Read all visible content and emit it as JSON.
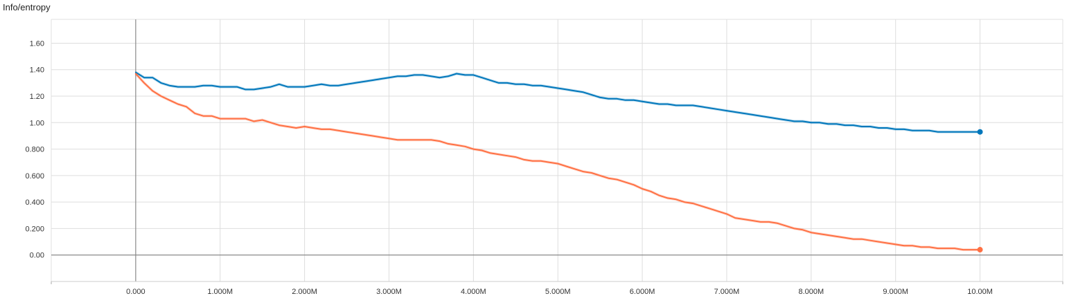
{
  "chart_data": {
    "type": "line",
    "title": "Info/entropy",
    "xlabel": "",
    "ylabel": "",
    "xlim": [
      -1000000,
      10980000
    ],
    "ylim": [
      -0.2,
      1.78
    ],
    "x_ticks": [
      0,
      1000000,
      2000000,
      3000000,
      4000000,
      5000000,
      6000000,
      7000000,
      8000000,
      9000000,
      10000000
    ],
    "x_tick_labels": [
      "0.000",
      "1.000M",
      "2.000M",
      "3.000M",
      "4.000M",
      "5.000M",
      "6.000M",
      "7.000M",
      "8.000M",
      "9.000M",
      "10.00M"
    ],
    "y_ticks": [
      0,
      0.2,
      0.4,
      0.6,
      0.8,
      1.0,
      1.2,
      1.4,
      1.6
    ],
    "y_tick_labels": [
      "0.00",
      "0.200",
      "0.400",
      "0.600",
      "0.800",
      "1.00",
      "1.20",
      "1.40",
      "1.60"
    ],
    "grid": true,
    "series": [
      {
        "color": "#0077bb",
        "x": [
          0,
          100000,
          200000,
          300000,
          400000,
          500000,
          600000,
          700000,
          800000,
          900000,
          1000000,
          1100000,
          1200000,
          1300000,
          1400000,
          1500000,
          1600000,
          1700000,
          1800000,
          1900000,
          2000000,
          2100000,
          2200000,
          2300000,
          2400000,
          2500000,
          2600000,
          2700000,
          2800000,
          2900000,
          3000000,
          3100000,
          3200000,
          3300000,
          3400000,
          3500000,
          3600000,
          3700000,
          3800000,
          3900000,
          4000000,
          4100000,
          4200000,
          4300000,
          4400000,
          4500000,
          4600000,
          4700000,
          4800000,
          4900000,
          5000000,
          5100000,
          5200000,
          5300000,
          5400000,
          5500000,
          5600000,
          5700000,
          5800000,
          5900000,
          6000000,
          6100000,
          6200000,
          6300000,
          6400000,
          6500000,
          6600000,
          6700000,
          6800000,
          6900000,
          7000000,
          7100000,
          7200000,
          7300000,
          7400000,
          7500000,
          7600000,
          7700000,
          7800000,
          7900000,
          8000000,
          8100000,
          8200000,
          8300000,
          8400000,
          8500000,
          8600000,
          8700000,
          8800000,
          8900000,
          9000000,
          9100000,
          9200000,
          9300000,
          9400000,
          9500000,
          9600000,
          9700000,
          9800000,
          9900000,
          10000000
        ],
        "y": [
          1.38,
          1.34,
          1.34,
          1.3,
          1.28,
          1.27,
          1.27,
          1.27,
          1.28,
          1.28,
          1.27,
          1.27,
          1.27,
          1.25,
          1.25,
          1.26,
          1.27,
          1.29,
          1.27,
          1.27,
          1.27,
          1.28,
          1.29,
          1.28,
          1.28,
          1.29,
          1.3,
          1.31,
          1.32,
          1.33,
          1.34,
          1.35,
          1.35,
          1.36,
          1.36,
          1.35,
          1.34,
          1.35,
          1.37,
          1.36,
          1.36,
          1.34,
          1.32,
          1.3,
          1.3,
          1.29,
          1.29,
          1.28,
          1.28,
          1.27,
          1.26,
          1.25,
          1.24,
          1.23,
          1.21,
          1.19,
          1.18,
          1.18,
          1.17,
          1.17,
          1.16,
          1.15,
          1.14,
          1.14,
          1.13,
          1.13,
          1.13,
          1.12,
          1.11,
          1.1,
          1.09,
          1.08,
          1.07,
          1.06,
          1.05,
          1.04,
          1.03,
          1.02,
          1.01,
          1.01,
          1.0,
          1.0,
          0.99,
          0.99,
          0.98,
          0.98,
          0.97,
          0.97,
          0.96,
          0.96,
          0.95,
          0.95,
          0.94,
          0.94,
          0.94,
          0.93,
          0.93,
          0.93,
          0.93,
          0.93,
          0.93
        ]
      },
      {
        "color": "#ff7043",
        "x": [
          0,
          100000,
          200000,
          300000,
          400000,
          500000,
          600000,
          700000,
          800000,
          900000,
          1000000,
          1100000,
          1200000,
          1300000,
          1400000,
          1500000,
          1600000,
          1700000,
          1800000,
          1900000,
          2000000,
          2100000,
          2200000,
          2300000,
          2400000,
          2500000,
          2600000,
          2700000,
          2800000,
          2900000,
          3000000,
          3100000,
          3200000,
          3300000,
          3400000,
          3500000,
          3600000,
          3700000,
          3800000,
          3900000,
          4000000,
          4100000,
          4200000,
          4300000,
          4400000,
          4500000,
          4600000,
          4700000,
          4800000,
          4900000,
          5000000,
          5100000,
          5200000,
          5300000,
          5400000,
          5500000,
          5600000,
          5700000,
          5800000,
          5900000,
          6000000,
          6100000,
          6200000,
          6300000,
          6400000,
          6500000,
          6600000,
          6700000,
          6800000,
          6900000,
          7000000,
          7100000,
          7200000,
          7300000,
          7400000,
          7500000,
          7600000,
          7700000,
          7800000,
          7900000,
          8000000,
          8100000,
          8200000,
          8300000,
          8400000,
          8500000,
          8600000,
          8700000,
          8800000,
          8900000,
          9000000,
          9100000,
          9200000,
          9300000,
          9400000,
          9500000,
          9600000,
          9700000,
          9800000,
          9900000,
          10000000
        ],
        "y": [
          1.37,
          1.3,
          1.24,
          1.2,
          1.17,
          1.14,
          1.12,
          1.07,
          1.05,
          1.05,
          1.03,
          1.03,
          1.03,
          1.03,
          1.01,
          1.02,
          1.0,
          0.98,
          0.97,
          0.96,
          0.97,
          0.96,
          0.95,
          0.95,
          0.94,
          0.93,
          0.92,
          0.91,
          0.9,
          0.89,
          0.88,
          0.87,
          0.87,
          0.87,
          0.87,
          0.87,
          0.86,
          0.84,
          0.83,
          0.82,
          0.8,
          0.79,
          0.77,
          0.76,
          0.75,
          0.74,
          0.72,
          0.71,
          0.71,
          0.7,
          0.69,
          0.67,
          0.65,
          0.63,
          0.62,
          0.6,
          0.58,
          0.57,
          0.55,
          0.53,
          0.5,
          0.48,
          0.45,
          0.43,
          0.42,
          0.4,
          0.39,
          0.37,
          0.35,
          0.33,
          0.31,
          0.28,
          0.27,
          0.26,
          0.25,
          0.25,
          0.24,
          0.22,
          0.2,
          0.19,
          0.17,
          0.16,
          0.15,
          0.14,
          0.13,
          0.12,
          0.12,
          0.11,
          0.1,
          0.09,
          0.08,
          0.07,
          0.07,
          0.06,
          0.06,
          0.05,
          0.05,
          0.05,
          0.04,
          0.04,
          0.04
        ]
      }
    ]
  }
}
